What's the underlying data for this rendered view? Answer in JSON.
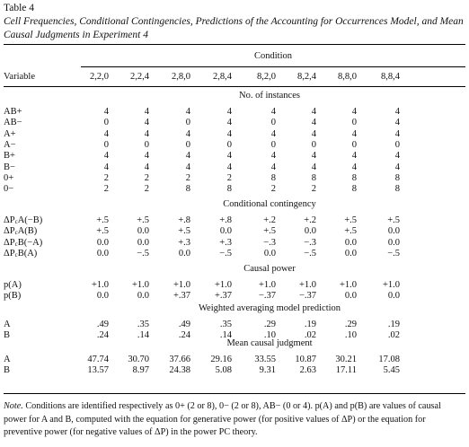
{
  "table_label": "Table 4",
  "caption": "Cell Frequencies, Conditional Contingencies, Predictions of the Accounting for Occurrences Model, and Mean Causal Judgments in Experiment 4",
  "spanner": "Condition",
  "variable_header": "Variable",
  "conditions": [
    "2,2,0",
    "2,2,4",
    "2,8,0",
    "2,8,4",
    "8,2,0",
    "8,2,4",
    "8,8,0",
    "8,8,4"
  ],
  "sections": [
    {
      "title": "No. of instances",
      "rows": [
        {
          "label": "AB+",
          "values": [
            "4",
            "4",
            "4",
            "4",
            "4",
            "4",
            "4",
            "4"
          ]
        },
        {
          "label": "AB−",
          "values": [
            "0",
            "4",
            "0",
            "4",
            "0",
            "4",
            "0",
            "4"
          ]
        },
        {
          "label": "A+",
          "values": [
            "4",
            "4",
            "4",
            "4",
            "4",
            "4",
            "4",
            "4"
          ]
        },
        {
          "label": "A−",
          "values": [
            "0",
            "0",
            "0",
            "0",
            "0",
            "0",
            "0",
            "0"
          ]
        },
        {
          "label": "B+",
          "values": [
            "4",
            "4",
            "4",
            "4",
            "4",
            "4",
            "4",
            "4"
          ]
        },
        {
          "label": "B−",
          "values": [
            "4",
            "4",
            "4",
            "4",
            "4",
            "4",
            "4",
            "4"
          ]
        },
        {
          "label": "0+",
          "values": [
            "2",
            "2",
            "2",
            "2",
            "8",
            "8",
            "8",
            "8"
          ]
        },
        {
          "label": "0−",
          "values": [
            "2",
            "2",
            "8",
            "8",
            "2",
            "2",
            "8",
            "8"
          ]
        }
      ]
    },
    {
      "title": "Conditional contingency",
      "rows": [
        {
          "label": "ΔP",
          "sub": "c",
          "rest": "A(−B)",
          "values": [
            "+.5",
            "+.5",
            "+.8",
            "+.8",
            "+.2",
            "+.2",
            "+.5",
            "+.5"
          ]
        },
        {
          "label": "ΔP",
          "sub": "c",
          "rest": "A(B)",
          "values": [
            "+.5",
            "0.0",
            "+.5",
            "0.0",
            "+.5",
            "0.0",
            "+.5",
            "0.0"
          ]
        },
        {
          "label": "ΔP",
          "sub": "c",
          "rest": "B(−A)",
          "values": [
            "0.0",
            "0.0",
            "+.3",
            "+.3",
            "−.3",
            "−.3",
            "0.0",
            "0.0"
          ]
        },
        {
          "label": "ΔP",
          "sub": "c",
          "rest": "B(A)",
          "values": [
            "0.0",
            "−.5",
            "0.0",
            "−.5",
            "0.0",
            "−.5",
            "0.0",
            "−.5"
          ]
        }
      ]
    },
    {
      "title": "Causal power",
      "rows": [
        {
          "label": "p(A)",
          "values": [
            "+1.0",
            "+1.0",
            "+1.0",
            "+1.0",
            "+1.0",
            "+1.0",
            "+1.0",
            "+1.0"
          ]
        },
        {
          "label": "p(B)",
          "values": [
            "0.0",
            "0.0",
            "+.37",
            "+.37",
            "−.37",
            "−.37",
            "0.0",
            "0.0"
          ]
        }
      ]
    },
    {
      "title": "Weighted averaging model prediction",
      "rows": [
        {
          "label": "A",
          "values": [
            ".49",
            ".35",
            ".49",
            ".35",
            ".29",
            ".19",
            ".29",
            ".19"
          ]
        },
        {
          "label": "B",
          "values": [
            ".24",
            ".14",
            ".24",
            ".14",
            ".10",
            ".02",
            ".10",
            ".02"
          ]
        }
      ]
    },
    {
      "title": "Mean causal judgment",
      "rows": [
        {
          "label": "A",
          "values": [
            "47.74",
            "30.70",
            "37.66",
            "29.16",
            "33.55",
            "10.87",
            "30.21",
            "17.08"
          ]
        },
        {
          "label": "B",
          "values": [
            "13.57",
            "8.97",
            "24.38",
            "5.08",
            "9.31",
            "2.63",
            "17.11",
            "5.45"
          ]
        }
      ]
    }
  ],
  "note_label": "Note.",
  "note_text": "Conditions are identified respectively as 0+ (2 or 8), 0− (2 or 8), AB− (0 or 4). p(A) and p(B) are values of causal power for A and B, computed with the equation for generative power (for positive values of ΔP) or the equation for preventive power (for negative values of ΔP) in the power PC theory."
}
